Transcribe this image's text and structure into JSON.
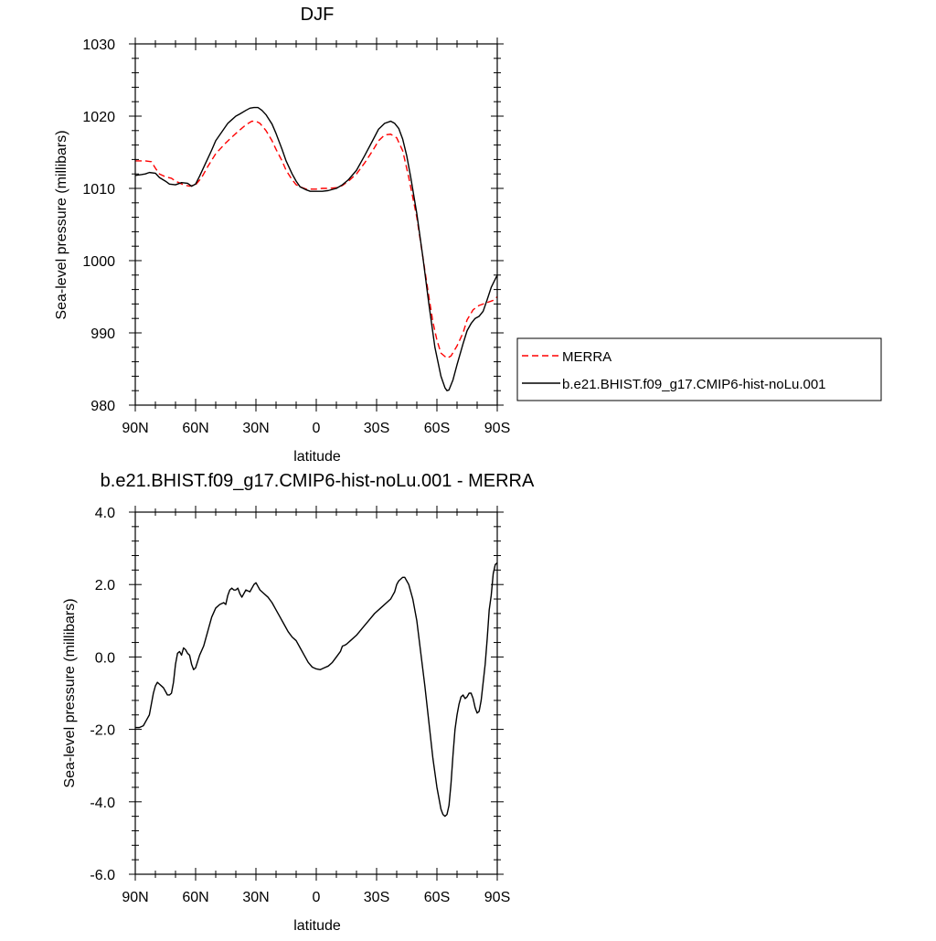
{
  "chart_data": [
    {
      "type": "line",
      "title": "DJF",
      "xlabel": "latitude",
      "ylabel": "Sea-level pressure (millibars)",
      "x_tick_labels": [
        "90N",
        "60N",
        "30N",
        "0",
        "30S",
        "60S",
        "90S"
      ],
      "x_ticks": [
        -90,
        -60,
        -30,
        0,
        30,
        60,
        90
      ],
      "xlim": [
        -90,
        90
      ],
      "x_note": "x values: negative = northern latitudes, positive = southern latitudes",
      "y_tick_labels": [
        "980",
        "990",
        "1000",
        "1010",
        "1020",
        "1030"
      ],
      "y_ticks": [
        980,
        990,
        1000,
        1010,
        1020,
        1030
      ],
      "ylim": [
        980,
        1030
      ],
      "legend_position": "right",
      "series": [
        {
          "name": "MERRA",
          "color": "#ff0000",
          "dash": "dashed",
          "x": [
            -90,
            -85,
            -82,
            -80,
            -78,
            -75,
            -72,
            -70,
            -66,
            -63,
            -60,
            -57,
            -54,
            -50,
            -45,
            -40,
            -35,
            -32,
            -30,
            -28,
            -25,
            -22,
            -20,
            -17,
            -15,
            -12,
            -10,
            -7,
            -5,
            -2,
            0,
            3,
            6,
            10,
            13,
            16,
            20,
            24,
            28,
            31,
            34,
            37,
            40,
            43,
            46,
            50,
            53,
            56,
            58,
            60,
            62,
            65,
            67,
            70,
            73,
            75,
            78,
            81,
            85,
            88,
            90
          ],
          "y": [
            1013.8,
            1013.8,
            1013.7,
            1012.8,
            1012.0,
            1011.6,
            1011.4,
            1011.0,
            1010.5,
            1010.3,
            1010.5,
            1011.5,
            1013.0,
            1014.8,
            1016.3,
            1017.6,
            1018.8,
            1019.3,
            1019.3,
            1019.0,
            1018.0,
            1016.6,
            1015.4,
            1013.8,
            1012.5,
            1011.2,
            1010.5,
            1010.1,
            1009.9,
            1009.9,
            1009.9,
            1010.0,
            1010.0,
            1010.1,
            1010.4,
            1011.0,
            1012.0,
            1013.5,
            1015.2,
            1016.6,
            1017.4,
            1017.5,
            1017.0,
            1015.2,
            1011.5,
            1006.0,
            1000.5,
            995.0,
            991.5,
            989.0,
            987.2,
            986.5,
            986.8,
            988.2,
            990.0,
            991.8,
            993.2,
            993.8,
            994.2,
            994.5,
            995.0
          ]
        },
        {
          "name": "b.e21.BHIST.f09_g17.CMIP6-hist-noLu.001",
          "color": "#000000",
          "dash": "solid",
          "x": [
            -90,
            -87,
            -85,
            -83,
            -80,
            -78,
            -75,
            -73,
            -70,
            -67,
            -64,
            -62,
            -60,
            -58,
            -55,
            -52,
            -50,
            -47,
            -44,
            -42,
            -40,
            -38,
            -35,
            -33,
            -31,
            -29,
            -27,
            -25,
            -22,
            -20,
            -17,
            -15,
            -12,
            -10,
            -8,
            -5,
            -3,
            0,
            3,
            6,
            10,
            13,
            16,
            20,
            24,
            28,
            31,
            34,
            37,
            39,
            41,
            43,
            45,
            47,
            50,
            53,
            56,
            59,
            62,
            64,
            65,
            66,
            68,
            70,
            73,
            75,
            77,
            79,
            81,
            83,
            85,
            87,
            90
          ],
          "y": [
            1011.8,
            1011.9,
            1012.0,
            1012.2,
            1012.1,
            1011.5,
            1011.0,
            1010.6,
            1010.5,
            1010.8,
            1010.7,
            1010.3,
            1010.6,
            1011.7,
            1013.5,
            1015.3,
            1016.6,
            1017.8,
            1019.0,
            1019.5,
            1020.0,
            1020.3,
            1020.8,
            1021.1,
            1021.2,
            1021.2,
            1020.8,
            1020.2,
            1018.9,
            1017.6,
            1015.4,
            1013.8,
            1012.0,
            1011.0,
            1010.2,
            1009.8,
            1009.6,
            1009.6,
            1009.6,
            1009.7,
            1010.0,
            1010.5,
            1011.2,
            1012.5,
            1014.5,
            1016.6,
            1018.2,
            1019.0,
            1019.3,
            1019.0,
            1018.3,
            1016.8,
            1014.5,
            1011.5,
            1006.5,
            1000.5,
            994.0,
            988.0,
            984.0,
            982.4,
            982.0,
            982.1,
            983.5,
            985.6,
            988.5,
            990.3,
            991.3,
            992.0,
            992.3,
            993.0,
            994.6,
            996.3,
            998.0
          ]
        }
      ]
    },
    {
      "type": "line",
      "title": "b.e21.BHIST.f09_g17.CMIP6-hist-noLu.001 - MERRA",
      "xlabel": "latitude",
      "ylabel": "Sea-level pressure (millibars)",
      "x_tick_labels": [
        "90N",
        "60N",
        "30N",
        "0",
        "30S",
        "60S",
        "90S"
      ],
      "x_ticks": [
        -90,
        -60,
        -30,
        0,
        30,
        60,
        90
      ],
      "xlim": [
        -90,
        90
      ],
      "y_tick_labels": [
        "-6.0",
        "-4.0",
        "-2.0",
        "0.0",
        "2.0",
        "4.0"
      ],
      "y_ticks": [
        -6,
        -4,
        -2,
        0,
        2,
        4
      ],
      "ylim": [
        -6,
        4
      ],
      "series": [
        {
          "color": "#000000",
          "dash": "solid",
          "x": [
            -90,
            -88,
            -86,
            -85,
            -83,
            -81,
            -80,
            -79,
            -78,
            -77,
            -76,
            -75,
            -74,
            -73,
            -72,
            -71,
            -70,
            -69,
            -68,
            -67,
            -66,
            -65,
            -64,
            -63,
            -62,
            -61,
            -60,
            -58,
            -56,
            -54,
            -52,
            -50,
            -48,
            -46,
            -45,
            -44,
            -43,
            -42,
            -41,
            -40,
            -39,
            -38,
            -37,
            -35,
            -33,
            -32,
            -31,
            -30,
            -29,
            -28,
            -26,
            -24,
            -22,
            -20,
            -18,
            -16,
            -14,
            -12,
            -10,
            -8,
            -6,
            -4,
            -2,
            0,
            2,
            4,
            6,
            8,
            10,
            12,
            13,
            14,
            15,
            17,
            20,
            23,
            26,
            29,
            32,
            35,
            37,
            38,
            39,
            40,
            41,
            42,
            43,
            44,
            46,
            48,
            50,
            52,
            54,
            56,
            58,
            60,
            62,
            63,
            64,
            65,
            66,
            67,
            68,
            69,
            70,
            71,
            72,
            73,
            74,
            75,
            76,
            77,
            78,
            79,
            80,
            81,
            82,
            83,
            84,
            85,
            86,
            87,
            88,
            89,
            90
          ],
          "y": [
            -1.95,
            -1.95,
            -1.9,
            -1.8,
            -1.6,
            -1.0,
            -0.8,
            -0.7,
            -0.75,
            -0.8,
            -0.85,
            -0.95,
            -1.05,
            -1.05,
            -1.0,
            -0.7,
            -0.2,
            0.1,
            0.15,
            0.05,
            0.25,
            0.2,
            0.1,
            0.05,
            -0.2,
            -0.35,
            -0.3,
            0.05,
            0.3,
            0.7,
            1.1,
            1.35,
            1.45,
            1.5,
            1.45,
            1.7,
            1.85,
            1.9,
            1.85,
            1.85,
            1.9,
            1.75,
            1.65,
            1.85,
            1.8,
            1.9,
            2.0,
            2.05,
            1.95,
            1.85,
            1.75,
            1.65,
            1.5,
            1.3,
            1.1,
            0.9,
            0.7,
            0.55,
            0.45,
            0.25,
            0.05,
            -0.15,
            -0.28,
            -0.33,
            -0.35,
            -0.3,
            -0.25,
            -0.15,
            0.0,
            0.15,
            0.3,
            0.32,
            0.35,
            0.45,
            0.6,
            0.8,
            1.0,
            1.2,
            1.35,
            1.5,
            1.6,
            1.7,
            1.8,
            2.0,
            2.1,
            2.15,
            2.2,
            2.2,
            2.0,
            1.6,
            1.0,
            0.1,
            -0.8,
            -1.8,
            -2.8,
            -3.6,
            -4.2,
            -4.35,
            -4.4,
            -4.35,
            -4.1,
            -3.5,
            -2.7,
            -2.0,
            -1.6,
            -1.3,
            -1.1,
            -1.05,
            -1.15,
            -1.1,
            -1.0,
            -1.0,
            -1.15,
            -1.4,
            -1.55,
            -1.5,
            -1.2,
            -0.7,
            -0.2,
            0.5,
            1.3,
            1.7,
            2.3,
            2.55,
            2.6
          ]
        }
      ]
    }
  ]
}
